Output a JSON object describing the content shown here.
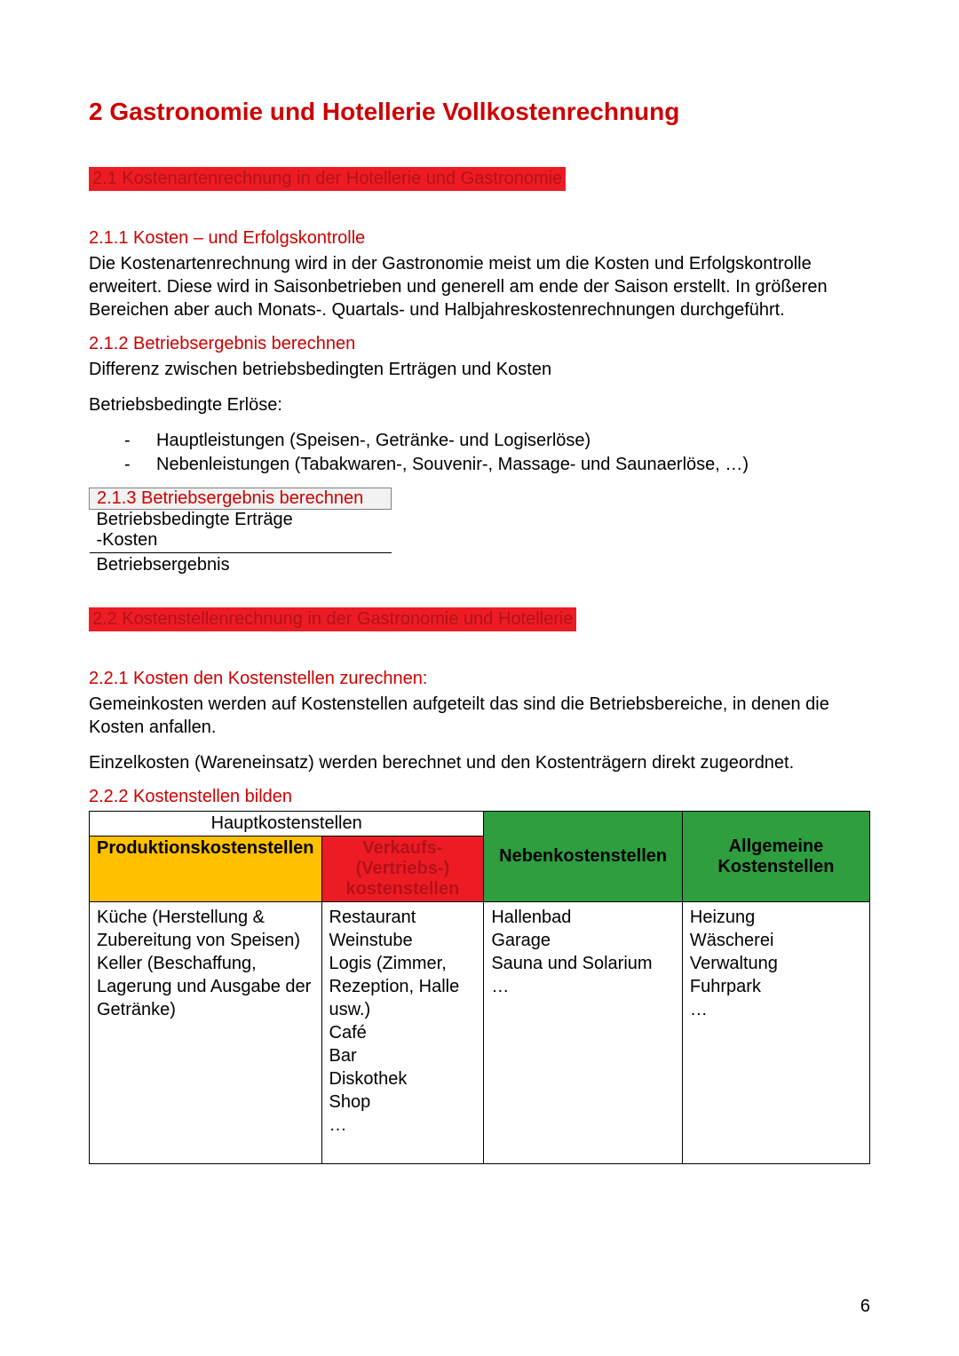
{
  "colors": {
    "heading_red": "#cc0000",
    "highlight_bg": "#ed1c24",
    "highlight_fg": "#b31217",
    "yellow": "#ffc000",
    "green": "#2e9e3f",
    "text": "#000000",
    "border_gray": "#808080",
    "calc_header_bg": "#f2f2f2"
  },
  "page_number": "6",
  "h1": "2   Gastronomie und Hotellerie Vollkostenrechnung",
  "section21": "2.1   Kostenartenrechnung in der Hotellerie und Gastronomie",
  "s211": {
    "heading": "2.1.1   Kosten – und Erfolgskontrolle",
    "body": "Die Kostenartenrechnung wird in der Gastronomie meist um die Kosten und Erfolgskontrolle erweitert. Diese wird in Saisonbetrieben und generell am ende der Saison erstellt. In größeren Bereichen aber auch Monats-. Quartals- und Halbjahreskostenrechnungen durchgeführt."
  },
  "s212": {
    "heading": "2.1.2   Betriebsergebnis berechnen",
    "body1": "Differenz zwischen betriebsbedingten Erträgen und Kosten",
    "body2": "Betriebsbedingte Erlöse:",
    "bullets": [
      "Hauptleistungen (Speisen-, Getränke- und Logiserlöse)",
      "Nebenleistungen (Tabakwaren-, Souvenir-, Massage- und Saunaerlöse, …)"
    ]
  },
  "s213": {
    "heading": "2.1.3   Betriebsergebnis berechnen",
    "row1": "Betriebsbedingte Erträge",
    "row2": "-Kosten",
    "row3": "Betriebsergebnis"
  },
  "section22": "2.2   Kostenstellenrechnung in der Gastronomie und Hotellerie",
  "s221": {
    "heading": "2.2.1   Kosten den Kostenstellen zurechnen:",
    "body1": "Gemeinkosten werden auf Kostenstellen aufgeteilt das sind die Betriebsbereiche, in denen die Kosten anfallen.",
    "body2": "Einzelkosten (Wareneinsatz) werden berechnet und den Kostenträgern direkt zugeordnet."
  },
  "s222": {
    "heading": "2.2.2   Kostenstellen bilden",
    "table": {
      "haupt_label": "Hauptkostenstellen",
      "col1_header": "Produktionskostenstellen",
      "col2_header": "Verkaufs-(Vertriebs-) kostenstellen",
      "col3_header": "Nebenkostenstellen",
      "col4_header": "Allgemeine Kostenstellen",
      "col1_body": "Küche (Herstellung & Zubereitung von Speisen)\nKeller (Beschaffung, Lagerung und Ausgabe der Getränke)",
      "col2_body": "Restaurant\nWeinstube\nLogis (Zimmer, Rezeption, Halle usw.)\nCafé\nBar\nDiskothek\nShop\n…",
      "col3_body": "Hallenbad\nGarage\nSauna und Solarium\n…",
      "col4_body": "Heizung\nWäscherei\nVerwaltung\nFuhrpark\n…",
      "col_widths": [
        "26%",
        "22%",
        "26%",
        "26%"
      ]
    }
  }
}
